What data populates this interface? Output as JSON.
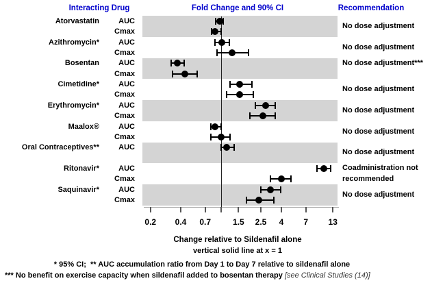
{
  "headers": {
    "interacting_drug": "Interacting Drug",
    "fold_change": "Fold Change and 90% CI",
    "recommendation": "Recommendation"
  },
  "footnotes": {
    "axis_title": "Change relative to Sildenafil alone",
    "vline_note": "vertical solid line at x = 1",
    "ci_note": "* 95% CI;  ** AUC accumulation ratio from Day 1 to Day 7 relative to sildenafil alone",
    "bosentan_note": "*** No benefit on exercise capacity when sildenafil added to bosentan therapy ",
    "bosentan_note_ref": "[see Clinical Studies (14)]"
  },
  "colors": {
    "header_blue": "#0000CC",
    "band_gray": "#D4D4D4",
    "marker_black": "#000000"
  },
  "chart_data": {
    "type": "forest",
    "title": "Fold Change and 90% CI",
    "xlabel": "Change relative to Sildenafil alone",
    "x_axis": {
      "scale": "log",
      "ticks": [
        0.2,
        0.4,
        0.7,
        1,
        1.5,
        2.5,
        4,
        7,
        13
      ],
      "tick_labels": [
        "0.2",
        "0.4",
        "0.7",
        "",
        "1.5",
        "2.5",
        "4",
        "7",
        "13"
      ],
      "reference_line": 1,
      "xlim": [
        0.17,
        15
      ]
    },
    "groups": [
      {
        "drug": "Atorvastatin",
        "shaded": true,
        "recommendation": "No dose adjustment",
        "entries": [
          {
            "param": "AUC",
            "value": 0.97,
            "ci_low": 0.89,
            "ci_high": 1.05
          },
          {
            "param": "Cmax",
            "value": 0.88,
            "ci_low": 0.81,
            "ci_high": 1.0
          }
        ]
      },
      {
        "drug": "Azithromycin*",
        "shaded": false,
        "recommendation": "No dose adjustment",
        "entries": [
          {
            "param": "AUC",
            "value": 1.02,
            "ci_low": 0.87,
            "ci_high": 1.21
          },
          {
            "param": "Cmax",
            "value": 1.3,
            "ci_low": 0.92,
            "ci_high": 1.9
          }
        ]
      },
      {
        "drug": "Bosentan",
        "shaded": true,
        "recommendation": "No dose adjustment***",
        "rec_align": "first",
        "entries": [
          {
            "param": "AUC",
            "value": 0.37,
            "ci_low": 0.32,
            "ci_high": 0.43
          },
          {
            "param": "Cmax",
            "value": 0.44,
            "ci_low": 0.33,
            "ci_high": 0.58
          }
        ]
      },
      {
        "drug": "Cimetidine*",
        "shaded": false,
        "recommendation": "No dose adjustment",
        "entries": [
          {
            "param": "AUC",
            "value": 1.55,
            "ci_low": 1.23,
            "ci_high": 2.05
          },
          {
            "param": "Cmax",
            "value": 1.53,
            "ci_low": 1.15,
            "ci_high": 2.1
          }
        ]
      },
      {
        "drug": "Erythromycin*",
        "shaded": true,
        "recommendation": "No dose adjustment",
        "entries": [
          {
            "param": "AUC",
            "value": 2.8,
            "ci_low": 2.2,
            "ci_high": 3.5
          },
          {
            "param": "Cmax",
            "value": 2.6,
            "ci_low": 1.95,
            "ci_high": 3.5
          }
        ]
      },
      {
        "drug": "Maalox®",
        "shaded": false,
        "recommendation": "No dose adjustment",
        "entries": [
          {
            "param": "AUC",
            "value": 0.88,
            "ci_low": 0.8,
            "ci_high": 1.0
          },
          {
            "param": "Cmax",
            "value": 1.0,
            "ci_low": 0.8,
            "ci_high": 1.24
          }
        ]
      },
      {
        "drug": "Oral Contraceptives**",
        "shaded": true,
        "rows_span": 2,
        "recommendation": "No dose adjustment",
        "entries": [
          {
            "param": "AUC",
            "value": 1.15,
            "ci_low": 1.0,
            "ci_high": 1.36
          }
        ]
      },
      {
        "drug": "Ritonavir*",
        "shaded": false,
        "recommendation": "Coadministration not recommended",
        "entries": [
          {
            "param": "AUC",
            "value": 10.6,
            "ci_low": 9.0,
            "ci_high": 12.4
          },
          {
            "param": "Cmax",
            "value": 4.0,
            "ci_low": 3.1,
            "ci_high": 5.0
          }
        ]
      },
      {
        "drug": "Saquinavir*",
        "shaded": true,
        "recommendation": "No dose adjustment",
        "entries": [
          {
            "param": "AUC",
            "value": 3.1,
            "ci_low": 2.5,
            "ci_high": 3.95
          },
          {
            "param": "Cmax",
            "value": 2.4,
            "ci_low": 1.8,
            "ci_high": 3.35
          }
        ]
      }
    ]
  }
}
